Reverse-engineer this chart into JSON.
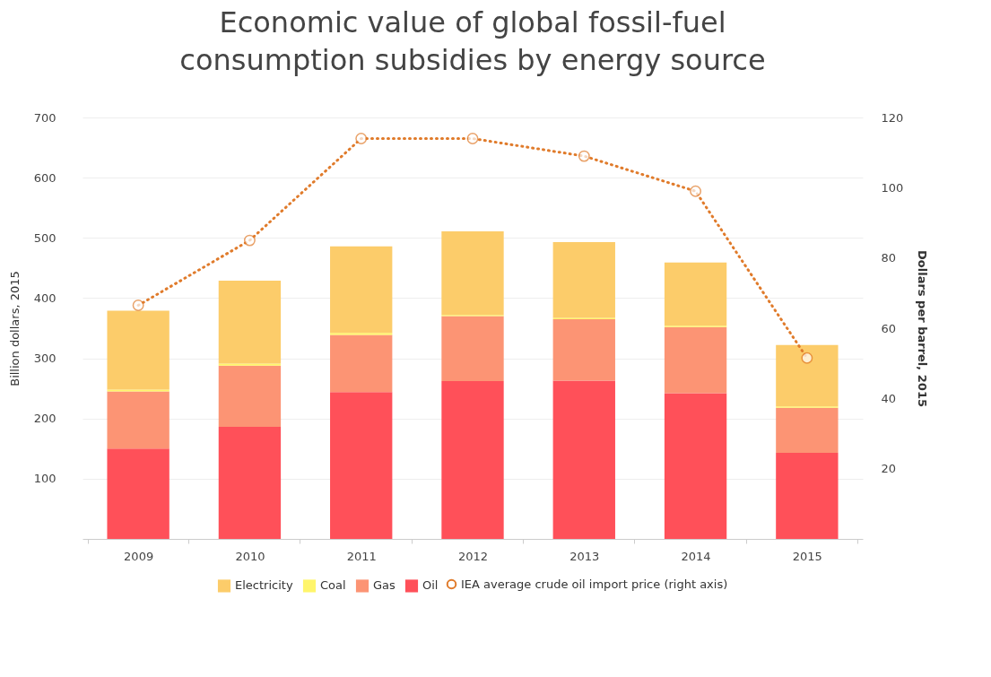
{
  "chart_data": {
    "type": "bar",
    "title": "Economic value of global fossil-fuel consumption subsidies by energy source",
    "ylabel": "Billion dollars, 2015",
    "y2label": "Dollars per barrel, 2015",
    "categories": [
      "2009",
      "2010",
      "2011",
      "2012",
      "2013",
      "2014",
      "2015"
    ],
    "stacked": true,
    "series": [
      {
        "name": "Oil",
        "color": "#ff5059",
        "values": [
          150,
          186,
          244,
          262,
          263,
          242,
          143
        ]
      },
      {
        "name": "Gas",
        "color": "#fc9474",
        "values": [
          95,
          102,
          95,
          108,
          102,
          110,
          75
        ]
      },
      {
        "name": "Coal",
        "color": "#fff56b",
        "values": [
          3,
          3,
          3,
          2,
          2,
          2,
          2
        ]
      },
      {
        "name": "Electricity",
        "color": "#fccc6a",
        "values": [
          131,
          138,
          144,
          139,
          126,
          105,
          102
        ]
      },
      {
        "name": "IEA average crude oil import price (right axis)",
        "type": "line",
        "axis": "y2",
        "color": "#e07b2b",
        "marker": "circle",
        "line_style": "dotted",
        "values": [
          66.5,
          85,
          114,
          114,
          109,
          99,
          51.5
        ]
      }
    ],
    "ylim": [
      0,
      700
    ],
    "yticks": [
      100,
      200,
      300,
      400,
      500,
      600,
      700
    ],
    "y2lim": [
      0,
      120
    ],
    "y2ticks": [
      20,
      40,
      60,
      80,
      100,
      120
    ],
    "grid": "y",
    "legend": "bottom"
  }
}
